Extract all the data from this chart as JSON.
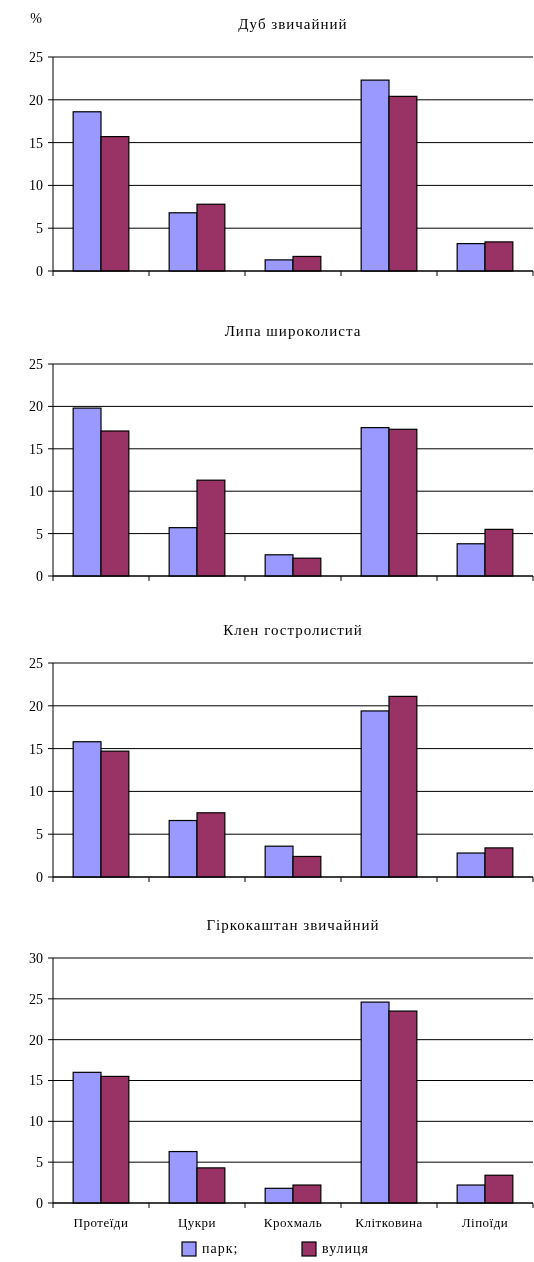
{
  "chart_data": [
    {
      "type": "bar",
      "title": "Дуб звичайний",
      "ylabel": "%",
      "categories": [
        null,
        null,
        null,
        null,
        null
      ],
      "ylim": [
        0,
        25
      ],
      "yticks": [
        0,
        5,
        10,
        15,
        20,
        25
      ],
      "grid": "y",
      "tick_labels": "y",
      "series": [
        {
          "color": "#9999ff",
          "values": [
            18.6,
            6.8,
            1.3,
            22.3,
            3.2
          ]
        },
        {
          "color": "#993366",
          "values": [
            15.7,
            7.8,
            1.7,
            20.4,
            3.4
          ]
        }
      ]
    },
    {
      "type": "bar",
      "title": "Липа широколиста",
      "categories": [
        null,
        null,
        null,
        null,
        null
      ],
      "ylim": [
        0,
        25
      ],
      "yticks": [
        0,
        5,
        10,
        15,
        20,
        25
      ],
      "grid": "y",
      "tick_labels": "y",
      "series": [
        {
          "color": "#9999ff",
          "values": [
            19.8,
            5.7,
            2.5,
            17.5,
            3.8
          ]
        },
        {
          "color": "#993366",
          "values": [
            17.1,
            11.3,
            2.1,
            17.3,
            5.5
          ]
        }
      ]
    },
    {
      "type": "bar",
      "title": "Клен гостролистий",
      "categories": [
        null,
        null,
        null,
        null,
        null
      ],
      "ylim": [
        0,
        25
      ],
      "yticks": [
        0,
        5,
        10,
        15,
        20,
        25
      ],
      "grid": "y",
      "tick_labels": "y",
      "series": [
        {
          "color": "#9999ff",
          "values": [
            15.8,
            6.6,
            3.6,
            19.4,
            2.8
          ]
        },
        {
          "color": "#993366",
          "values": [
            14.7,
            7.5,
            2.4,
            21.1,
            3.4
          ]
        }
      ]
    },
    {
      "type": "bar",
      "title": "Гіркокаштан звичайний",
      "categories": [
        "Протеїди",
        "Цукри",
        "Крохмаль",
        "Клітковина",
        "Ліпоїди"
      ],
      "ylim": [
        0,
        30
      ],
      "yticks": [
        0,
        5,
        10,
        15,
        20,
        25,
        30
      ],
      "grid": "y",
      "legend": "bottom",
      "series": [
        {
          "name": "парк;",
          "color": "#9999ff",
          "values": [
            16.0,
            6.3,
            1.8,
            24.6,
            2.2
          ]
        },
        {
          "name": "вулиця",
          "color": "#993366",
          "values": [
            15.5,
            4.3,
            2.2,
            23.5,
            3.4
          ]
        }
      ]
    }
  ]
}
